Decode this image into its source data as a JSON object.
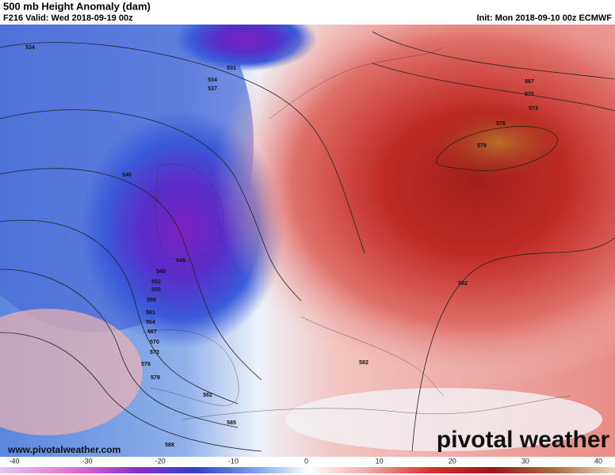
{
  "header": {
    "title": "500 mb Height Anomaly (dam)",
    "valid": "F216 Valid: Wed 2018-09-19 00z",
    "init": "Init: Mon 2018-09-10 00z ECMWF"
  },
  "contour_labels": [
    "534",
    "531",
    "534",
    "537",
    "540",
    "546",
    "549",
    "552",
    "555",
    "558",
    "561",
    "564",
    "567",
    "570",
    "573",
    "576",
    "579",
    "582",
    "585",
    "588",
    "582",
    "582",
    "567",
    "570",
    "573",
    "576",
    "579"
  ],
  "footer": {
    "website": "www.pivotalweather.com",
    "brand": "pivotal weather"
  },
  "colorbar": {
    "ticks": [
      -40,
      -30,
      -20,
      -10,
      0,
      10,
      20,
      30,
      40
    ]
  }
}
